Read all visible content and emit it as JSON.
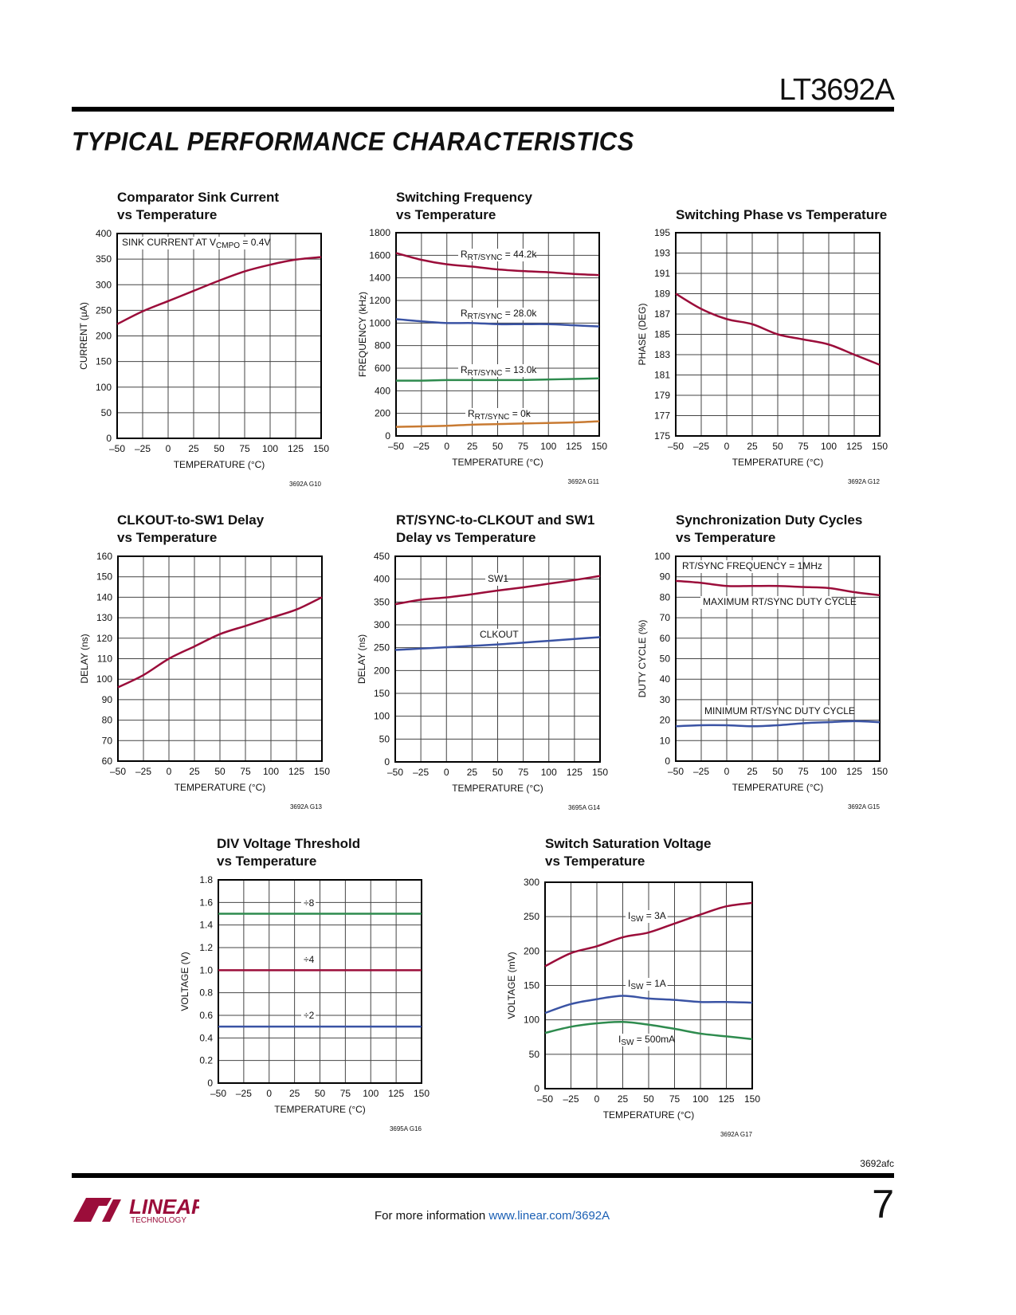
{
  "header": {
    "part_number": "LT3692A",
    "section_title": "TYPICAL PERFORMANCE CHARACTERISTICS"
  },
  "footer": {
    "doc_code": "3692afc",
    "page_number": "7",
    "info_text": "For more information ",
    "link_text": "www.linear.com/3692A",
    "logo_text": "LINEAR TECHNOLOGY"
  },
  "colors": {
    "red": "#9b0d3a",
    "blue": "#3a53a4",
    "green": "#2e8b4e",
    "orange": "#c87a32"
  },
  "chart_data": [
    {
      "type": "line",
      "title": [
        "Comparator Sink Current",
        "vs Temperature"
      ],
      "xlabel": "TEMPERATURE (°C)",
      "ylabel": "CURRENT (µA)",
      "fig_id": "3692A G10",
      "x": [
        -50,
        -25,
        0,
        25,
        50,
        75,
        100,
        125,
        150
      ],
      "xlim": [
        -50,
        150
      ],
      "ylim": [
        0,
        400
      ],
      "ystep": 50,
      "xtick_labels": [
        "–50",
        "–25",
        "0",
        "25",
        "50",
        "75",
        "100",
        "125",
        "150"
      ],
      "ytick_labels": [
        "0",
        "50",
        "100",
        "150",
        "200",
        "250",
        "300",
        "350",
        "400"
      ],
      "note": {
        "main": "SINK CURRENT AT V",
        "sub": "CMPO",
        "rest": " = 0.4V"
      },
      "series": [
        {
          "label": null,
          "color": "#9b0d3a",
          "values": [
            223,
            248,
            268,
            288,
            308,
            326,
            339,
            349,
            354
          ]
        }
      ]
    },
    {
      "type": "line",
      "title": [
        "Switching Frequency",
        "vs Temperature"
      ],
      "xlabel": "TEMPERATURE (°C)",
      "ylabel": "FREQUENCY (kHz)",
      "fig_id": "3692A G11",
      "x": [
        -50,
        -25,
        0,
        25,
        50,
        75,
        100,
        125,
        150
      ],
      "xlim": [
        -50,
        150
      ],
      "ylim": [
        0,
        1800
      ],
      "ystep": 200,
      "xtick_labels": [
        "–50",
        "–25",
        "0",
        "25",
        "50",
        "75",
        "100",
        "125",
        "150"
      ],
      "ytick_labels": [
        "0",
        "200",
        "400",
        "600",
        "800",
        "1000",
        "1200",
        "1400",
        "1600",
        "1800"
      ],
      "series": [
        {
          "label": {
            "main": "R",
            "sub": "RT/SYNC",
            "rest": " = 44.2k"
          },
          "color": "#9b0d3a",
          "values": [
            1620,
            1560,
            1520,
            1500,
            1475,
            1460,
            1450,
            1435,
            1425
          ]
        },
        {
          "label": {
            "main": "R",
            "sub": "RT/SYNC",
            "rest": " = 28.0k"
          },
          "color": "#3a53a4",
          "values": [
            1035,
            1015,
            1000,
            1000,
            990,
            990,
            990,
            980,
            970
          ]
        },
        {
          "label": {
            "main": "R",
            "sub": "RT/SYNC",
            "rest": " = 13.0k"
          },
          "color": "#2e8b4e",
          "values": [
            490,
            490,
            495,
            495,
            495,
            495,
            500,
            505,
            510
          ]
        },
        {
          "label": {
            "main": "R",
            "sub": "RT/SYNC",
            "rest": " = 0k"
          },
          "color": "#c87a32",
          "values": [
            80,
            85,
            90,
            100,
            105,
            110,
            115,
            120,
            130
          ]
        }
      ]
    },
    {
      "type": "line",
      "title": [
        "Switching Phase vs Temperature"
      ],
      "xlabel": "TEMPERATURE (°C)",
      "ylabel": "PHASE (DEG)",
      "fig_id": "3692A G12",
      "x": [
        -50,
        -25,
        0,
        25,
        50,
        75,
        100,
        125,
        150
      ],
      "xlim": [
        -50,
        150
      ],
      "ylim": [
        175,
        195
      ],
      "ystep": 2,
      "xtick_labels": [
        "–50",
        "–25",
        "0",
        "25",
        "50",
        "75",
        "100",
        "125",
        "150"
      ],
      "ytick_labels": [
        "175",
        "177",
        "179",
        "181",
        "183",
        "185",
        "187",
        "189",
        "191",
        "193",
        "195"
      ],
      "series": [
        {
          "label": null,
          "color": "#9b0d3a",
          "values": [
            189,
            187.5,
            186.5,
            186,
            185,
            184.5,
            184,
            183,
            182
          ]
        }
      ]
    },
    {
      "type": "line",
      "title": [
        "CLKOUT-to-SW1 Delay",
        "vs Temperature"
      ],
      "xlabel": "TEMPERATURE (°C)",
      "ylabel": "DELAY (ns)",
      "fig_id": "3692A G13",
      "x": [
        -50,
        -25,
        0,
        25,
        50,
        75,
        100,
        125,
        150
      ],
      "xlim": [
        -50,
        150
      ],
      "ylim": [
        60,
        160
      ],
      "ystep": 10,
      "xtick_labels": [
        "–50",
        "–25",
        "0",
        "25",
        "50",
        "75",
        "100",
        "125",
        "150"
      ],
      "ytick_labels": [
        "60",
        "70",
        "80",
        "90",
        "100",
        "110",
        "120",
        "130",
        "140",
        "150",
        "160"
      ],
      "series": [
        {
          "label": null,
          "color": "#9b0d3a",
          "values": [
            96,
            102,
            110,
            116,
            122,
            126,
            130,
            134,
            140
          ]
        }
      ]
    },
    {
      "type": "line",
      "title": [
        "RT/SYNC-to-CLKOUT and SW1",
        "Delay vs Temperature"
      ],
      "xlabel": "TEMPERATURE (°C)",
      "ylabel": "DELAY (ns)",
      "fig_id": "3695A G14",
      "x": [
        -50,
        -25,
        0,
        25,
        50,
        75,
        100,
        125,
        150
      ],
      "xlim": [
        -50,
        150
      ],
      "ylim": [
        0,
        450
      ],
      "ystep": 50,
      "xtick_labels": [
        "–50",
        "–25",
        "0",
        "25",
        "50",
        "75",
        "100",
        "125",
        "150"
      ],
      "ytick_labels": [
        "0",
        "50",
        "100",
        "150",
        "200",
        "250",
        "300",
        "350",
        "400",
        "450"
      ],
      "series": [
        {
          "label": {
            "main": "SW1",
            "sub": "",
            "rest": ""
          },
          "color": "#9b0d3a",
          "values": [
            345,
            355,
            360,
            367,
            375,
            382,
            390,
            398,
            407
          ]
        },
        {
          "label": {
            "main": "CLKOUT",
            "sub": "",
            "rest": ""
          },
          "color": "#3a53a4",
          "values": [
            245,
            248,
            251,
            254,
            257,
            261,
            265,
            269,
            273
          ]
        }
      ]
    },
    {
      "type": "line",
      "title": [
        "Synchronization Duty Cycles",
        "vs Temperature"
      ],
      "xlabel": "TEMPERATURE (°C)",
      "ylabel": "DUTY CYCLE (%)",
      "fig_id": "3692A G15",
      "x": [
        -50,
        -25,
        0,
        25,
        50,
        75,
        100,
        125,
        150
      ],
      "xlim": [
        -50,
        150
      ],
      "ylim": [
        0,
        100
      ],
      "ystep": 10,
      "xtick_labels": [
        "–50",
        "–25",
        "0",
        "25",
        "50",
        "75",
        "100",
        "125",
        "150"
      ],
      "ytick_labels": [
        "0",
        "10",
        "20",
        "30",
        "40",
        "50",
        "60",
        "70",
        "80",
        "90",
        "100"
      ],
      "note": {
        "main": "RT/SYNC FREQUENCY = 1MHz",
        "sub": "",
        "rest": ""
      },
      "series": [
        {
          "label": {
            "main": "MAXIMUM RT/SYNC DUTY CYCLE",
            "sub": "",
            "rest": ""
          },
          "color": "#9b0d3a",
          "values": [
            88,
            87,
            85.5,
            85.5,
            85.5,
            85,
            84.5,
            82.5,
            81
          ]
        },
        {
          "label": {
            "main": "MINIMUM RT/SYNC DUTY CYCLE",
            "sub": "",
            "rest": ""
          },
          "color": "#3a53a4",
          "values": [
            17,
            17.5,
            17.5,
            17,
            17.5,
            18.5,
            19,
            19.5,
            19
          ]
        }
      ]
    },
    {
      "type": "line",
      "title": [
        "DIV Voltage Threshold",
        "vs Temperature"
      ],
      "xlabel": "TEMPERATURE (°C)",
      "ylabel": "VOLTAGE (V)",
      "fig_id": "3695A G16",
      "x": [
        -50,
        -25,
        0,
        25,
        50,
        75,
        100,
        125,
        150
      ],
      "xlim": [
        -50,
        150
      ],
      "ylim": [
        0,
        1.8
      ],
      "ystep": 0.2,
      "xtick_labels": [
        "–50",
        "–25",
        "0",
        "25",
        "50",
        "75",
        "100",
        "125",
        "150"
      ],
      "ytick_labels": [
        "0",
        "0.2",
        "0.4",
        "0.6",
        "0.8",
        "1.0",
        "1.2",
        "1.4",
        "1.6",
        "1.8"
      ],
      "series": [
        {
          "label": {
            "main": "÷8",
            "sub": "",
            "rest": ""
          },
          "color": "#2e8b4e",
          "values": [
            1.5,
            1.5,
            1.5,
            1.5,
            1.5,
            1.5,
            1.5,
            1.5,
            1.5
          ]
        },
        {
          "label": {
            "main": "÷4",
            "sub": "",
            "rest": ""
          },
          "color": "#9b0d3a",
          "values": [
            1.0,
            1.0,
            1.0,
            1.0,
            1.0,
            1.0,
            1.0,
            1.0,
            1.0
          ]
        },
        {
          "label": {
            "main": "÷2",
            "sub": "",
            "rest": ""
          },
          "color": "#3a53a4",
          "values": [
            0.5,
            0.5,
            0.5,
            0.5,
            0.5,
            0.5,
            0.5,
            0.5,
            0.5
          ]
        }
      ]
    },
    {
      "type": "line",
      "title": [
        "Switch Saturation Voltage",
        "vs Temperature"
      ],
      "xlabel": "TEMPERATURE (°C)",
      "ylabel": "VOLTAGE (mV)",
      "fig_id": "3692A G17",
      "x": [
        -50,
        -25,
        0,
        25,
        50,
        75,
        100,
        125,
        150
      ],
      "xlim": [
        -50,
        150
      ],
      "ylim": [
        0,
        300
      ],
      "ystep": 50,
      "xtick_labels": [
        "–50",
        "–25",
        "0",
        "25",
        "50",
        "75",
        "100",
        "125",
        "150"
      ],
      "ytick_labels": [
        "0",
        "50",
        "100",
        "150",
        "200",
        "250",
        "300"
      ],
      "series": [
        {
          "label": {
            "main": "I",
            "sub": "SW",
            "rest": " = 3A"
          },
          "color": "#9b0d3a",
          "values": [
            178,
            197,
            207,
            220,
            227,
            240,
            253,
            265,
            270
          ]
        },
        {
          "label": {
            "main": "I",
            "sub": "SW",
            "rest": " = 1A"
          },
          "color": "#3a53a4",
          "values": [
            110,
            123,
            130,
            135,
            131,
            129,
            126,
            126,
            125
          ]
        },
        {
          "label": {
            "main": "I",
            "sub": "SW",
            "rest": " = 500mA"
          },
          "color": "#2e8b4e",
          "values": [
            81,
            90,
            95,
            97,
            93,
            87,
            80,
            76,
            72
          ]
        }
      ]
    }
  ]
}
